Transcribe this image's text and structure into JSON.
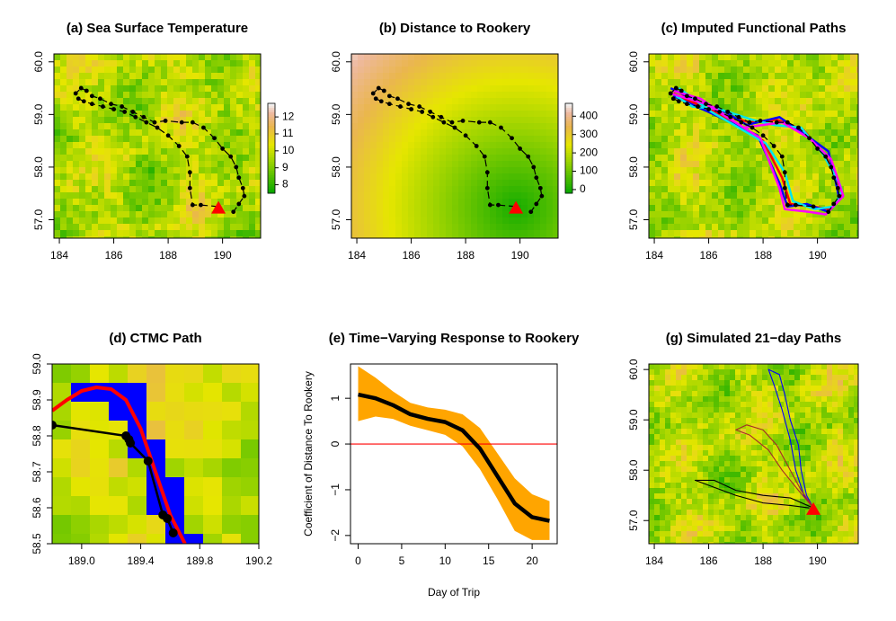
{
  "chart_data": [
    {
      "type": "map",
      "title": "(a) Sea Surface Temperature",
      "xlim": [
        183.8,
        191.4
      ],
      "ylim": [
        56.65,
        60.15
      ],
      "xticks": [
        184,
        186,
        188,
        190
      ],
      "yticks": [
        {
          "value": 57,
          "label": "57.0"
        },
        {
          "value": 58,
          "label": "58.0"
        },
        {
          "value": 59,
          "label": "59.0"
        },
        {
          "value": 60,
          "label": "60.0"
        }
      ],
      "track": {
        "color": "#000000",
        "linestyle": "dashed",
        "x": [
          189.85,
          189.2,
          188.9,
          188.8,
          188.8,
          188.7,
          188.4,
          188.0,
          187.6,
          187.2,
          186.8,
          186.4,
          186.0,
          185.6,
          185.2,
          184.9,
          184.7,
          184.6,
          184.8,
          185.0,
          185.2,
          185.5,
          185.9,
          186.3,
          186.7,
          187.1,
          187.5,
          187.9,
          188.5,
          188.9,
          189.3,
          189.7,
          190.0,
          190.3,
          190.5,
          190.6,
          190.75,
          190.8,
          190.6,
          190.4
        ],
        "y": [
          57.25,
          57.28,
          57.28,
          57.6,
          57.9,
          58.2,
          58.4,
          58.6,
          58.75,
          58.85,
          58.95,
          59.05,
          59.1,
          59.15,
          59.2,
          59.25,
          59.3,
          59.4,
          59.5,
          59.45,
          59.35,
          59.3,
          59.2,
          59.15,
          59.05,
          58.95,
          58.85,
          58.88,
          58.85,
          58.85,
          58.75,
          58.55,
          58.35,
          58.2,
          58.0,
          57.8,
          57.6,
          57.45,
          57.3,
          57.15
        ]
      },
      "rookery": [
        189.85,
        57.22
      ],
      "rookery_color": "#ff0000",
      "colorbar": {
        "lim": [
          7.5,
          12.8
        ],
        "ticks": [
          8,
          9,
          10,
          11,
          12
        ]
      }
    },
    {
      "type": "map",
      "title": "(b) Distance to Rookery",
      "xlim": [
        183.8,
        191.4
      ],
      "ylim": [
        56.65,
        60.15
      ],
      "xticks": [
        184,
        186,
        188,
        190
      ],
      "yticks": [
        {
          "value": 57,
          "label": "57.0"
        },
        {
          "value": 58,
          "label": "58.0"
        },
        {
          "value": 59,
          "label": "59.0"
        },
        {
          "value": 60,
          "label": "60.0"
        }
      ],
      "track": {
        "color": "#000000",
        "linestyle": "dashed",
        "x": [
          189.85,
          189.2,
          188.9,
          188.8,
          188.8,
          188.7,
          188.4,
          188.0,
          187.6,
          187.2,
          186.8,
          186.4,
          186.0,
          185.6,
          185.2,
          184.9,
          184.7,
          184.6,
          184.8,
          185.0,
          185.2,
          185.5,
          185.9,
          186.3,
          186.7,
          187.1,
          187.5,
          187.9,
          188.5,
          188.9,
          189.3,
          189.7,
          190.0,
          190.3,
          190.5,
          190.6,
          190.75,
          190.8,
          190.6,
          190.4
        ],
        "y": [
          57.25,
          57.28,
          57.28,
          57.6,
          57.9,
          58.2,
          58.4,
          58.6,
          58.75,
          58.85,
          58.95,
          59.05,
          59.1,
          59.15,
          59.2,
          59.25,
          59.3,
          59.4,
          59.5,
          59.45,
          59.35,
          59.3,
          59.2,
          59.15,
          59.05,
          58.95,
          58.85,
          58.88,
          58.85,
          58.85,
          58.75,
          58.55,
          58.35,
          58.2,
          58.0,
          57.8,
          57.6,
          57.45,
          57.3,
          57.15
        ]
      },
      "rookery": [
        189.85,
        57.22
      ],
      "rookery_color": "#ff0000",
      "colorbar": {
        "lim": [
          -20,
          470
        ],
        "ticks": [
          0,
          100,
          200,
          300,
          400
        ]
      }
    },
    {
      "type": "map",
      "title": "(c) Imputed Functional Paths",
      "xlim": [
        183.8,
        191.5
      ],
      "ylim": [
        56.65,
        60.15
      ],
      "xticks": [
        184,
        186,
        188,
        190
      ],
      "yticks": [
        {
          "value": 57,
          "label": "57.0"
        },
        {
          "value": 58,
          "label": "58.0"
        },
        {
          "value": 59,
          "label": "59.0"
        },
        {
          "value": 60,
          "label": "60.0"
        }
      ],
      "series": [
        {
          "color": "#ff0000",
          "x": [
            184.7,
            185.5,
            186.5,
            187.5,
            188.5,
            189.5,
            190.3,
            190.7,
            190.9,
            190.5,
            189.8,
            189.0,
            188.7,
            188.0,
            186.0,
            184.8
          ],
          "y": [
            59.4,
            59.2,
            59.0,
            58.85,
            58.9,
            58.7,
            58.2,
            57.8,
            57.5,
            57.2,
            57.25,
            57.3,
            57.8,
            58.5,
            59.1,
            59.45
          ]
        },
        {
          "color": "#0000ff",
          "x": [
            184.6,
            185.6,
            186.6,
            187.4,
            188.6,
            189.6,
            190.4,
            190.6,
            190.8,
            190.4,
            189.6,
            188.9,
            188.6,
            187.8,
            186.2,
            184.7
          ],
          "y": [
            59.5,
            59.25,
            59.05,
            58.8,
            58.95,
            58.6,
            58.3,
            57.9,
            57.4,
            57.15,
            57.3,
            57.25,
            57.7,
            58.6,
            59.0,
            59.35
          ]
        },
        {
          "color": "#00e5ee",
          "x": [
            184.8,
            185.4,
            186.4,
            187.6,
            188.4,
            189.4,
            190.2,
            190.8,
            190.9,
            190.6,
            189.9,
            189.1,
            188.8,
            188.1,
            186.1,
            184.9
          ],
          "y": [
            59.35,
            59.15,
            59.1,
            58.9,
            58.8,
            58.75,
            58.25,
            57.7,
            57.55,
            57.25,
            57.2,
            57.35,
            57.9,
            58.45,
            59.05,
            59.5
          ]
        },
        {
          "color": "#ff00ff",
          "x": [
            184.7,
            185.7,
            186.7,
            187.3,
            188.7,
            189.7,
            190.5,
            190.7,
            190.95,
            190.3,
            189.7,
            188.8,
            188.6,
            187.9,
            185.9,
            184.6
          ],
          "y": [
            59.45,
            59.3,
            58.95,
            58.75,
            58.85,
            58.55,
            58.15,
            57.85,
            57.45,
            57.1,
            57.15,
            57.2,
            57.6,
            58.55,
            59.2,
            59.4
          ]
        }
      ],
      "track": {
        "color": "#000000",
        "linestyle": "dashed",
        "x": [
          189.85,
          189.2,
          188.9,
          188.8,
          188.8,
          188.7,
          188.4,
          188.0,
          187.6,
          187.2,
          186.8,
          186.4,
          186.0,
          185.6,
          185.2,
          184.9,
          184.7,
          184.6,
          184.8,
          185.0,
          185.2,
          185.5,
          185.9,
          186.3,
          186.7,
          187.1,
          187.5,
          187.9,
          188.5,
          188.9,
          189.3,
          189.7,
          190.0,
          190.3,
          190.5,
          190.6,
          190.75,
          190.8,
          190.6,
          190.4
        ],
        "y": [
          57.25,
          57.28,
          57.28,
          57.6,
          57.9,
          58.2,
          58.4,
          58.6,
          58.75,
          58.85,
          58.95,
          59.05,
          59.1,
          59.15,
          59.2,
          59.25,
          59.3,
          59.4,
          59.5,
          59.45,
          59.35,
          59.3,
          59.2,
          59.15,
          59.05,
          58.95,
          58.85,
          58.88,
          58.85,
          58.85,
          58.75,
          58.55,
          58.35,
          58.2,
          58.0,
          57.8,
          57.6,
          57.45,
          57.3,
          57.15
        ]
      }
    },
    {
      "type": "map",
      "title": "(d) CTMC Path",
      "xlim": [
        188.8,
        190.2
      ],
      "ylim": [
        58.5,
        59.0
      ],
      "xticks": [
        {
          "value": 189,
          "label": "189.0"
        },
        189.4,
        189.8,
        190.2
      ],
      "yticks": [
        58.5,
        58.6,
        58.7,
        58.8,
        58.9,
        {
          "value": 59,
          "label": "59.0"
        }
      ],
      "series": [
        {
          "color": "#ff0000",
          "x": [
            188.8,
            188.9,
            189.0,
            189.1,
            189.2,
            189.3,
            189.4,
            189.5,
            189.6,
            189.7
          ],
          "y": [
            58.87,
            58.9,
            58.925,
            58.935,
            58.93,
            58.9,
            58.82,
            58.7,
            58.58,
            58.5
          ]
        }
      ],
      "track": {
        "color": "#000000",
        "linestyle": "solid",
        "x": [
          188.8,
          189.3,
          189.32,
          189.33,
          189.45,
          189.55,
          189.58,
          189.62
        ],
        "y": [
          58.83,
          58.8,
          58.79,
          58.78,
          58.73,
          58.58,
          58.57,
          58.53
        ]
      }
    },
    {
      "type": "line",
      "title": "(e) Time−Varying Response to Rookery",
      "xlabel": "Day of Trip",
      "ylabel": "Coefficient of Distance To Rookery",
      "xlim": [
        -0.88,
        22.88
      ],
      "ylim": [
        -2.18,
        1.75
      ],
      "xticks": [
        0,
        5,
        10,
        15,
        20
      ],
      "yticks": [
        {
          "value": -2,
          "label": "−2"
        },
        {
          "value": -1,
          "label": "−1"
        },
        0,
        1
      ],
      "x": [
        0,
        2,
        4,
        6,
        8,
        10,
        12,
        14,
        16,
        18,
        20,
        22
      ],
      "values": [
        1.08,
        1.0,
        0.85,
        0.65,
        0.55,
        0.48,
        0.3,
        -0.1,
        -0.7,
        -1.3,
        -1.6,
        -1.68
      ],
      "lower": [
        0.5,
        0.6,
        0.55,
        0.4,
        0.3,
        0.2,
        -0.05,
        -0.55,
        -1.2,
        -1.9,
        -2.1,
        -2.1
      ],
      "upper": [
        1.7,
        1.45,
        1.15,
        0.9,
        0.8,
        0.75,
        0.65,
        0.35,
        -0.2,
        -0.75,
        -1.1,
        -1.25
      ],
      "color": "#000000",
      "band_color": "#ffa500",
      "hline": 0,
      "hline_color": "#ff0000"
    },
    {
      "type": "map",
      "title": "(g) Simulated 21−day Paths",
      "xlim": [
        183.8,
        191.5
      ],
      "ylim": [
        56.54,
        60.11
      ],
      "xticks": [
        184,
        186,
        188,
        190
      ],
      "yticks": [
        {
          "value": 57,
          "label": "57.0"
        },
        {
          "value": 58,
          "label": "58.0"
        },
        {
          "value": 59,
          "label": "59.0"
        },
        {
          "value": 60,
          "label": "60.0"
        }
      ],
      "series": [
        {
          "color": "#0000ff",
          "x": [
            189.85,
            189.6,
            189.4,
            189.3,
            189.0,
            188.8,
            188.6,
            188.2,
            188.4,
            188.7,
            189.0,
            189.2,
            189.5,
            189.8
          ],
          "y": [
            57.25,
            57.5,
            58.0,
            58.5,
            59.0,
            59.5,
            59.9,
            60.0,
            59.7,
            59.2,
            58.6,
            58.0,
            57.5,
            57.3
          ]
        },
        {
          "color": "#a52a2a",
          "x": [
            189.85,
            189.3,
            188.7,
            188.2,
            187.5,
            187.0,
            187.4,
            188.0,
            188.5,
            189.0,
            189.4,
            189.8
          ],
          "y": [
            57.25,
            57.6,
            58.0,
            58.4,
            58.7,
            58.8,
            58.9,
            58.8,
            58.5,
            58.0,
            57.6,
            57.3
          ]
        },
        {
          "color": "#000000",
          "x": [
            189.85,
            189.0,
            188.0,
            187.0,
            186.2,
            185.5,
            186.0,
            187.0,
            188.0,
            189.0,
            189.7
          ],
          "y": [
            57.25,
            57.45,
            57.5,
            57.6,
            57.8,
            57.8,
            57.7,
            57.5,
            57.35,
            57.3,
            57.25
          ]
        }
      ],
      "rookery": [
        189.85,
        57.22
      ],
      "rookery_color": "#ff0000"
    }
  ]
}
